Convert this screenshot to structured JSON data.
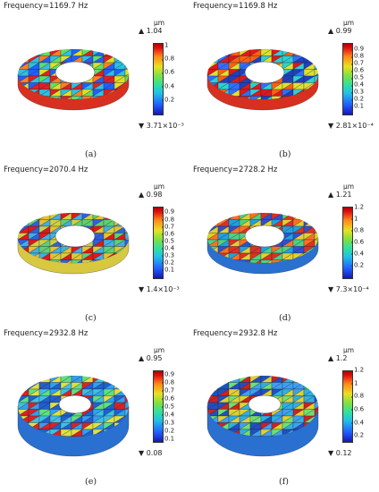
{
  "panels": [
    {
      "id": "a",
      "frequency": "Frequency=1169.7 Hz",
      "unit": "µm",
      "max": "▲ 1.04",
      "min": "▼ 3.71×10⁻³",
      "ticks": [
        "1",
        "0.8",
        "0.6",
        "0.4",
        "0.2"
      ],
      "tick_values": [
        1,
        0.8,
        0.6,
        0.4,
        0.2
      ],
      "scale": [
        0,
        1.04
      ],
      "label": "(a)",
      "view": "tilted"
    },
    {
      "id": "b",
      "frequency": "Frequency=1169.8 Hz",
      "unit": "µm",
      "max": "▲ 0.99",
      "min": "▼ 2.81×10⁻⁴",
      "ticks": [
        "0.9",
        "0.8",
        "0.7",
        "0.6",
        "0.5",
        "0.4",
        "0.3",
        "0.2",
        "0.1"
      ],
      "tick_values": [
        0.9,
        0.8,
        0.7,
        0.6,
        0.5,
        0.4,
        0.3,
        0.2,
        0.1
      ],
      "scale": [
        0,
        0.99
      ],
      "label": "(b)",
      "view": "tilted"
    },
    {
      "id": "c",
      "frequency": "Frequency=2070.4 Hz",
      "unit": "µm",
      "max": "▲ 0.98",
      "min": "▼ 1.4×10⁻³",
      "ticks": [
        "0.9",
        "0.8",
        "0.7",
        "0.6",
        "0.5",
        "0.4",
        "0.3",
        "0.2",
        "0.1"
      ],
      "tick_values": [
        0.9,
        0.8,
        0.7,
        0.6,
        0.5,
        0.4,
        0.3,
        0.2,
        0.1
      ],
      "scale": [
        0,
        0.98
      ],
      "label": "(c)",
      "view": "tilted"
    },
    {
      "id": "d",
      "frequency": "Frequency=2728.2 Hz",
      "unit": "µm",
      "max": "▲ 1.21",
      "min": "▼ 7.3×10⁻⁴",
      "ticks": [
        "1.2",
        "1",
        "0.8",
        "0.6",
        "0.4",
        "0.2"
      ],
      "tick_values": [
        1.2,
        1,
        0.8,
        0.6,
        0.4,
        0.2
      ],
      "scale": [
        0,
        1.21
      ],
      "label": "(d)",
      "view": "tilted"
    },
    {
      "id": "e",
      "frequency": "Frequency=2932.8 Hz",
      "unit": "µm",
      "max": "▲ 0.95",
      "min": "▼ 0.08",
      "ticks": [
        "0.9",
        "0.8",
        "0.7",
        "0.6",
        "0.5",
        "0.4",
        "0.3",
        "0.2",
        "0.1"
      ],
      "tick_values": [
        0.9,
        0.8,
        0.7,
        0.6,
        0.5,
        0.4,
        0.3,
        0.2,
        0.1
      ],
      "scale": [
        0.08,
        0.95
      ],
      "label": "(e)",
      "view": "thick"
    },
    {
      "id": "f",
      "frequency": "Frequency=2932.8 Hz",
      "unit": "µm",
      "max": "▲ 1.2",
      "min": "▼ 0.12",
      "ticks": [
        "1.2",
        "1",
        "0.8",
        "0.6",
        "0.4",
        "0.2"
      ],
      "tick_values": [
        1.2,
        1,
        0.8,
        0.6,
        0.4,
        0.2
      ],
      "scale": [
        0.12,
        1.2
      ],
      "label": "(f)",
      "view": "thick"
    }
  ]
}
